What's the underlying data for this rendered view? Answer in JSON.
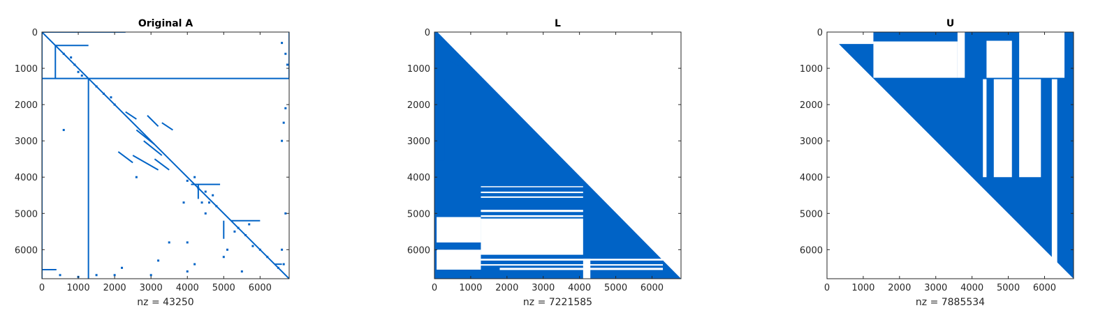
{
  "chart_data": [
    {
      "type": "spy",
      "title": "Original A",
      "xlabel": "nz = 43250",
      "nz": 43250,
      "xlim": [
        0,
        6800
      ],
      "ylim": [
        0,
        6800
      ],
      "y_reversed": true,
      "xticks": [
        0,
        1000,
        2000,
        3000,
        4000,
        5000,
        6000
      ],
      "yticks": [
        0,
        1000,
        2000,
        3000,
        4000,
        5000,
        6000
      ],
      "xtick_labels": [
        "0",
        "1000",
        "2000",
        "3000",
        "4000",
        "5000",
        "6000"
      ],
      "ytick_labels": [
        "0",
        "1000",
        "2000",
        "3000",
        "4000",
        "5000",
        "6000"
      ],
      "color": "#0063c6",
      "segments": [
        [
          0,
          0,
          6800,
          6800
        ],
        [
          0,
          0,
          2300,
          0
        ],
        [
          0,
          1280,
          6800,
          1280
        ],
        [
          1280,
          1300,
          1280,
          6800
        ],
        [
          370,
          370,
          1280,
          370
        ],
        [
          370,
          370,
          370,
          1280
        ],
        [
          0,
          0,
          0,
          6800
        ],
        [
          6800,
          0,
          6800,
          1300
        ],
        [
          0,
          6550,
          400,
          6550
        ],
        [
          2300,
          2200,
          2600,
          2400
        ],
        [
          2900,
          2300,
          3200,
          2600
        ],
        [
          3300,
          2500,
          3600,
          2700
        ],
        [
          2600,
          2700,
          3100,
          3100
        ],
        [
          2800,
          3000,
          3300,
          3400
        ],
        [
          2100,
          3300,
          2500,
          3600
        ],
        [
          2500,
          3400,
          3200,
          3800
        ],
        [
          3100,
          3500,
          3500,
          3800
        ],
        [
          4100,
          4200,
          4900,
          4200
        ],
        [
          5200,
          5200,
          6000,
          5200
        ],
        [
          5000,
          5200,
          5000,
          5700
        ],
        [
          4300,
          4200,
          4300,
          4600
        ],
        [
          6400,
          6400,
          6600,
          6400
        ]
      ],
      "points": [
        [
          600,
          600
        ],
        [
          800,
          700
        ],
        [
          900,
          900
        ],
        [
          1000,
          1100
        ],
        [
          1500,
          1500
        ],
        [
          1700,
          1700
        ],
        [
          1900,
          1800
        ],
        [
          2000,
          2000
        ],
        [
          4300,
          4300
        ],
        [
          4500,
          4400
        ],
        [
          4600,
          4700
        ],
        [
          4800,
          4800
        ],
        [
          5400,
          5400
        ],
        [
          5600,
          5600
        ],
        [
          5800,
          5900
        ],
        [
          6000,
          6000
        ],
        [
          6200,
          6200
        ],
        [
          6500,
          6500
        ],
        [
          4700,
          4500
        ],
        [
          4400,
          4700
        ],
        [
          5300,
          5500
        ],
        [
          5700,
          5300
        ],
        [
          4000,
          4100
        ],
        [
          4200,
          4000
        ],
        [
          3900,
          4700
        ],
        [
          4500,
          5000
        ],
        [
          6600,
          300
        ],
        [
          6700,
          600
        ],
        [
          6750,
          900
        ],
        [
          6700,
          2100
        ],
        [
          6650,
          2500
        ],
        [
          6600,
          3000
        ],
        [
          6700,
          5000
        ],
        [
          6600,
          6000
        ],
        [
          6650,
          6400
        ],
        [
          500,
          6700
        ],
        [
          1000,
          6750
        ],
        [
          1500,
          6700
        ],
        [
          2000,
          6700
        ],
        [
          3000,
          6700
        ],
        [
          4000,
          6600
        ],
        [
          4200,
          6400
        ],
        [
          5500,
          6600
        ],
        [
          5000,
          6200
        ],
        [
          4000,
          5800
        ],
        [
          600,
          2700
        ],
        [
          3500,
          5800
        ],
        [
          2600,
          4000
        ],
        [
          1100,
          1200
        ],
        [
          5100,
          6000
        ],
        [
          3200,
          6300
        ],
        [
          2200,
          6500
        ]
      ]
    },
    {
      "type": "spy",
      "title": "L",
      "xlabel": "nz = 7221585",
      "nz": 7221585,
      "xlim": [
        0,
        6800
      ],
      "ylim": [
        0,
        6800
      ],
      "y_reversed": true,
      "xticks": [
        0,
        1000,
        2000,
        3000,
        4000,
        5000,
        6000
      ],
      "yticks": [
        0,
        1000,
        2000,
        3000,
        4000,
        5000,
        6000
      ],
      "xtick_labels": [
        "0",
        "1000",
        "2000",
        "3000",
        "4000",
        "5000",
        "6000"
      ],
      "ytick_labels": [
        "0",
        "1000",
        "2000",
        "3000",
        "4000",
        "5000",
        "6000"
      ],
      "color": "#0063c6",
      "polygons": [
        [
          [
            0,
            0
          ],
          [
            80,
            0
          ],
          [
            6800,
            6800
          ],
          [
            0,
            6800
          ]
        ],
        [
          [
            370,
            770
          ],
          [
            370,
            1300
          ],
          [
            1280,
            1300
          ],
          [
            1280,
            1280
          ]
        ],
        [
          [
            1280,
            1300
          ],
          [
            6800,
            6800
          ],
          [
            1280,
            6800
          ]
        ],
        [
          [
            0,
            1300
          ],
          [
            270,
            1300
          ],
          [
            270,
            3550
          ],
          [
            0,
            3550
          ]
        ],
        [
          [
            0,
            5000
          ],
          [
            1280,
            5000
          ],
          [
            1280,
            6800
          ],
          [
            0,
            6800
          ]
        ]
      ],
      "white_bands": [
        [
          [
            1280,
            4250
          ],
          [
            4100,
            4250
          ],
          [
            4100,
            4280
          ],
          [
            1280,
            4280
          ]
        ],
        [
          [
            1280,
            4400
          ],
          [
            4100,
            4400
          ],
          [
            4100,
            4440
          ],
          [
            1280,
            4440
          ]
        ],
        [
          [
            1280,
            4530
          ],
          [
            4100,
            4530
          ],
          [
            4100,
            4570
          ],
          [
            1280,
            4570
          ]
        ],
        [
          [
            1280,
            4900
          ],
          [
            4100,
            4900
          ],
          [
            4100,
            4960
          ],
          [
            1280,
            4960
          ]
        ],
        [
          [
            1280,
            5050
          ],
          [
            4100,
            5050
          ],
          [
            4100,
            5100
          ],
          [
            1280,
            5100
          ]
        ],
        [
          [
            1280,
            5140
          ],
          [
            4100,
            5140
          ],
          [
            4100,
            6140
          ],
          [
            1280,
            6140
          ]
        ],
        [
          [
            1280,
            6250
          ],
          [
            6300,
            6250
          ],
          [
            6300,
            6300
          ],
          [
            1280,
            6300
          ]
        ],
        [
          [
            1280,
            6400
          ],
          [
            6300,
            6400
          ],
          [
            6300,
            6440
          ],
          [
            1280,
            6440
          ]
        ],
        [
          [
            1800,
            6500
          ],
          [
            6300,
            6500
          ],
          [
            6300,
            6560
          ],
          [
            1800,
            6560
          ]
        ],
        [
          [
            4100,
            6250
          ],
          [
            4300,
            6250
          ],
          [
            4300,
            6800
          ],
          [
            4100,
            6800
          ]
        ],
        [
          [
            60,
            5100
          ],
          [
            1280,
            5100
          ],
          [
            1280,
            5800
          ],
          [
            60,
            5800
          ]
        ],
        [
          [
            60,
            6000
          ],
          [
            1280,
            6000
          ],
          [
            1280,
            6550
          ],
          [
            60,
            6550
          ]
        ]
      ]
    },
    {
      "type": "spy",
      "title": "U",
      "xlabel": "nz = 7885534",
      "nz": 7885534,
      "xlim": [
        0,
        6800
      ],
      "ylim": [
        0,
        6800
      ],
      "y_reversed": true,
      "xticks": [
        0,
        1000,
        2000,
        3000,
        4000,
        5000,
        6000
      ],
      "yticks": [
        0,
        1000,
        2000,
        3000,
        4000,
        5000,
        6000
      ],
      "xtick_labels": [
        "0",
        "1000",
        "2000",
        "3000",
        "4000",
        "5000",
        "6000"
      ],
      "ytick_labels": [
        "0",
        "1000",
        "2000",
        "3000",
        "4000",
        "5000",
        "6000"
      ],
      "color": "#0063c6",
      "polygons": [
        [
          [
            0,
            0
          ],
          [
            6800,
            0
          ],
          [
            6800,
            6800
          ]
        ],
        [
          [
            370,
            370
          ],
          [
            1280,
            370
          ],
          [
            1280,
            1280
          ]
        ]
      ],
      "white_bands": [
        [
          [
            1280,
            260
          ],
          [
            3600,
            260
          ],
          [
            3600,
            1260
          ],
          [
            1280,
            1260
          ]
        ],
        [
          [
            3600,
            0
          ],
          [
            3800,
            0
          ],
          [
            3800,
            1260
          ],
          [
            3600,
            1260
          ]
        ],
        [
          [
            4400,
            240
          ],
          [
            5100,
            240
          ],
          [
            5100,
            1260
          ],
          [
            4400,
            1260
          ]
        ],
        [
          [
            5300,
            0
          ],
          [
            6550,
            0
          ],
          [
            6550,
            1260
          ],
          [
            5300,
            1260
          ]
        ],
        [
          [
            4600,
            1300
          ],
          [
            5100,
            1300
          ],
          [
            5100,
            4000
          ],
          [
            4600,
            4000
          ]
        ],
        [
          [
            4300,
            1300
          ],
          [
            4400,
            1300
          ],
          [
            4400,
            4000
          ],
          [
            4300,
            4000
          ]
        ],
        [
          [
            5300,
            1300
          ],
          [
            5900,
            1300
          ],
          [
            5900,
            4000
          ],
          [
            5300,
            4000
          ]
        ],
        [
          [
            6200,
            1300
          ],
          [
            6350,
            1300
          ],
          [
            6350,
            6500
          ],
          [
            6200,
            6500
          ]
        ],
        [
          [
            0,
            0
          ],
          [
            1280,
            0
          ],
          [
            1280,
            330
          ],
          [
            0,
            330
          ]
        ]
      ]
    }
  ]
}
